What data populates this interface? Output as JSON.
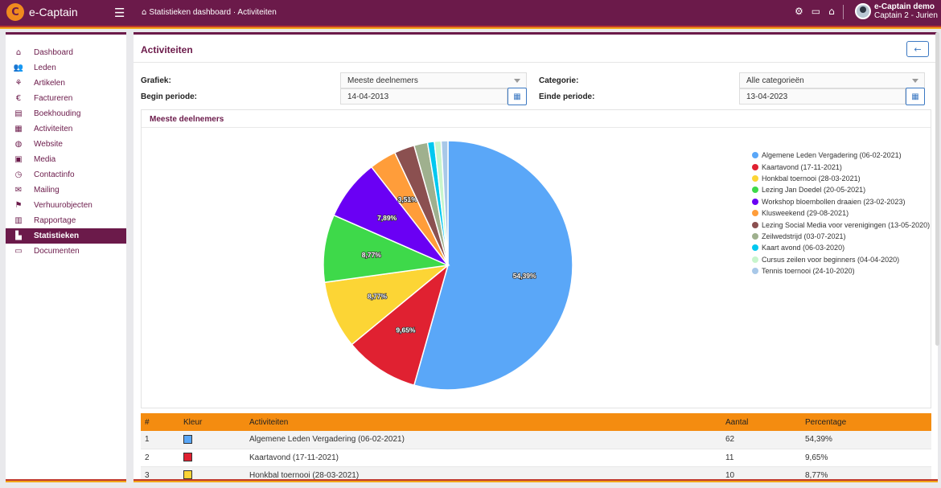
{
  "app": {
    "name": "e-Captain",
    "logo_glyph": "C"
  },
  "header": {
    "breadcrumb": "Statistieken dashboard · Activiteiten",
    "user_name": "e-Captain demo",
    "user_sub": "Captain 2 - Jurien",
    "icons": [
      "users-settings-icon",
      "id-card-icon",
      "inbox-icon"
    ]
  },
  "sidebar": {
    "items": [
      {
        "label": "Dashboard",
        "icon": "⌂",
        "icon_name": "home-icon"
      },
      {
        "label": "Leden",
        "icon": "👥",
        "icon_name": "members-icon"
      },
      {
        "label": "Artikelen",
        "icon": "⚘",
        "icon_name": "articles-icon"
      },
      {
        "label": "Factureren",
        "icon": "€",
        "icon_name": "euro-icon"
      },
      {
        "label": "Boekhouding",
        "icon": "▤",
        "icon_name": "ledger-icon"
      },
      {
        "label": "Activiteiten",
        "icon": "▦",
        "icon_name": "calendar-icon"
      },
      {
        "label": "Website",
        "icon": "◍",
        "icon_name": "globe-icon"
      },
      {
        "label": "Media",
        "icon": "▣",
        "icon_name": "media-icon"
      },
      {
        "label": "Contactinfo",
        "icon": "◷",
        "icon_name": "clock-icon"
      },
      {
        "label": "Mailing",
        "icon": "✉",
        "icon_name": "mail-icon"
      },
      {
        "label": "Verhuurobjecten",
        "icon": "⚑",
        "icon_name": "rental-icon"
      },
      {
        "label": "Rapportage",
        "icon": "▥",
        "icon_name": "report-icon"
      },
      {
        "label": "Statistieken",
        "icon": "▙",
        "icon_name": "statistics-icon",
        "active": true
      },
      {
        "label": "Documenten",
        "icon": "▭",
        "icon_name": "folder-icon"
      }
    ]
  },
  "page": {
    "title": "Activiteiten",
    "back_icon": "←",
    "form": {
      "grafiek_label": "Grafiek:",
      "grafiek_value": "Meeste deelnemers",
      "categorie_label": "Categorie:",
      "categorie_value": "Alle categorieën",
      "begin_label": "Begin periode:",
      "begin_value": "14-04-2013",
      "einde_label": "Einde periode:",
      "einde_value": "13-04-2023"
    },
    "chart_title": "Meeste deelnemers"
  },
  "chart_data": {
    "type": "pie",
    "title": "Meeste deelnemers",
    "legend_position": "right",
    "slices": [
      {
        "label": "Algemene Leden Vergadering (06-02-2021)",
        "value": 62,
        "percent": "54,39%",
        "color": "#5aa7f8",
        "show_label": true
      },
      {
        "label": "Kaartavond (17-11-2021)",
        "value": 11,
        "percent": "9,65%",
        "color": "#e02131",
        "show_label": true
      },
      {
        "label": "Honkbal toernooi (28-03-2021)",
        "value": 10,
        "percent": "8,77%",
        "color": "#fcd535",
        "show_label": true
      },
      {
        "label": "Lezing Jan Doedel (20-05-2021)",
        "value": 10,
        "percent": "8,77%",
        "color": "#3ed94a",
        "show_label": true
      },
      {
        "label": "Workshop bloembollen draaien (23-02-2023)",
        "value": 9,
        "percent": "7,89%",
        "color": "#6a00f4",
        "show_label": true
      },
      {
        "label": "Klusweekend (29-08-2021)",
        "value": 4,
        "percent": "3,51%",
        "color": "#ff9d3a",
        "show_label": true
      },
      {
        "label": "Lezing Social Media voor verenigingen (13-05-2020)",
        "value": 3,
        "percent": "",
        "color": "#8b5050",
        "show_label": false
      },
      {
        "label": "Zeilwedstrijd (03-07-2021)",
        "value": 2,
        "percent": "",
        "color": "#9fb08e",
        "show_label": false
      },
      {
        "label": "Kaart avond (06-03-2020)",
        "value": 1,
        "percent": "",
        "color": "#00c8f0",
        "show_label": false
      },
      {
        "label": "Cursus zeilen voor beginners (04-04-2020)",
        "value": 1,
        "percent": "",
        "color": "#c8f5cc",
        "show_label": false
      },
      {
        "label": "Tennis toernooi (24-10-2020)",
        "value": 1,
        "percent": "",
        "color": "#a8c8e8",
        "show_label": false
      }
    ]
  },
  "table": {
    "headers": [
      "#",
      "Kleur",
      "Activiteiten",
      "Aantal",
      "Percentage"
    ],
    "rows": [
      {
        "num": "1",
        "color": "#5aa7f8",
        "activity": "Algemene Leden Vergadering (06-02-2021)",
        "count": "62",
        "percent": "54,39%"
      },
      {
        "num": "2",
        "color": "#e02131",
        "activity": "Kaartavond (17-11-2021)",
        "count": "11",
        "percent": "9,65%"
      },
      {
        "num": "3",
        "color": "#fcd535",
        "activity": "Honkbal toernooi (28-03-2021)",
        "count": "10",
        "percent": "8,77%"
      }
    ]
  }
}
